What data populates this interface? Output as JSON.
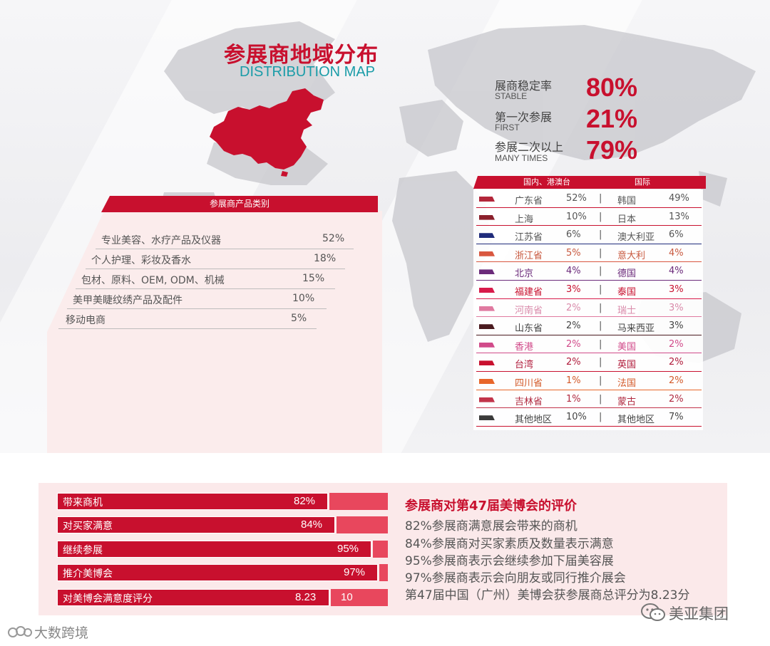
{
  "title": {
    "cn": "参展商地域分布",
    "en": "DISTRIBUTION MAP"
  },
  "stats": [
    {
      "label": "展商稳定率",
      "sub": "STABLE",
      "value": "80%"
    },
    {
      "label": "第一次参展",
      "sub": "FIRST",
      "value": "21%"
    },
    {
      "label": "参展二次以上",
      "sub": "MANY TIMES",
      "value": "79%"
    }
  ],
  "categories": {
    "header": "参展商产品类别",
    "items": [
      {
        "name": "专业美容、水疗产品及仪器",
        "pct": "52%"
      },
      {
        "name": "个人护理、彩妆及香水",
        "pct": "18%"
      },
      {
        "name": "包材、原料、OEM, ODM、机械",
        "pct": "15%"
      },
      {
        "name": "美甲美睫纹绣产品及配件",
        "pct": "10%"
      },
      {
        "name": "移动电商",
        "pct": "5%"
      }
    ]
  },
  "regions": {
    "header_domestic": "国内、港澳台",
    "header_intl": "国际",
    "separator": "|",
    "rows": [
      {
        "dom": "广东省",
        "dom_pct": "52%",
        "intl": "韩国",
        "intl_pct": "49%",
        "color": "#b3263a",
        "text": "#555555",
        "line": "#c8102e"
      },
      {
        "dom": "上海",
        "dom_pct": "10%",
        "intl": "日本",
        "intl_pct": "13%",
        "color": "#8a1f2b",
        "text": "#555555",
        "line": "#c8102e"
      },
      {
        "dom": "江苏省",
        "dom_pct": "6%",
        "intl": "澳大利亚",
        "intl_pct": "6%",
        "color": "#1f2b7a",
        "text": "#555555",
        "line": "#1f2b7a"
      },
      {
        "dom": "浙江省",
        "dom_pct": "5%",
        "intl": "意大利",
        "intl_pct": "4%",
        "color": "#d9573f",
        "text": "#c8593f",
        "line": "#d9573f"
      },
      {
        "dom": "北京",
        "dom_pct": "4%",
        "intl": "德国",
        "intl_pct": "4%",
        "color": "#6b2a7a",
        "text": "#6b2a7a",
        "line": "#6b2a7a"
      },
      {
        "dom": "福建省",
        "dom_pct": "3%",
        "intl": "泰国",
        "intl_pct": "3%",
        "color": "#d81b4a",
        "text": "#c8102e",
        "line": "#d81b4a"
      },
      {
        "dom": "河南省",
        "dom_pct": "2%",
        "intl": "瑞士",
        "intl_pct": "3%",
        "color": "#e07aa0",
        "text": "#d98aaa",
        "line": "#e07aa0"
      },
      {
        "dom": "山东省",
        "dom_pct": "2%",
        "intl": "马来西亚",
        "intl_pct": "3%",
        "color": "#4a1a1f",
        "text": "#444444",
        "line": "#4a1a1f"
      },
      {
        "dom": "香港",
        "dom_pct": "2%",
        "intl": "美国",
        "intl_pct": "2%",
        "color": "#d14b8a",
        "text": "#d14b8a",
        "line": "#d14b8a"
      },
      {
        "dom": "台湾",
        "dom_pct": "2%",
        "intl": "英国",
        "intl_pct": "2%",
        "color": "#c8102e",
        "text": "#b01a3a",
        "line": "#c8102e"
      },
      {
        "dom": "四川省",
        "dom_pct": "1%",
        "intl": "法国",
        "intl_pct": "2%",
        "color": "#e8662a",
        "text": "#d35a2a",
        "line": "#e8662a"
      },
      {
        "dom": "吉林省",
        "dom_pct": "1%",
        "intl": "蒙古",
        "intl_pct": "2%",
        "color": "#c2344a",
        "text": "#b02a40",
        "line": "#c2344a"
      },
      {
        "dom": "其他地区",
        "dom_pct": "10%",
        "intl": "其他地区",
        "intl_pct": "7%",
        "color": "#3a3a3a",
        "text": "#444444",
        "line": "#c8102e"
      }
    ]
  },
  "chart_data": {
    "type": "bar",
    "categories": [
      "带来商机",
      "对买家满意",
      "继续参展",
      "推介美博会",
      "对美博会满意度评分"
    ],
    "values": [
      82,
      84,
      95,
      97,
      8.23
    ],
    "value_labels": [
      "82%",
      "84%",
      "95%",
      "97%",
      "8.23"
    ],
    "max": [
      100,
      100,
      100,
      100,
      10
    ],
    "max_label": "10",
    "title": "参展商对第47届美博会的评价"
  },
  "evaluation_lines": [
    "82%参展商满意展会带来的商机",
    "84%参展商对买家素质及数量表示满意",
    "95%参展商表示会继续参加下届美容展",
    "97%参展商表示会向朋友或同行推介展会",
    "第47届中国（广州）美博会获参展商总评分为8.23分"
  ],
  "footer": {
    "left": "大数跨境",
    "right": "美亚集团"
  },
  "colors": {
    "accent": "#c8102e",
    "accent_light": "#e8475d",
    "teal": "#1a9ca8",
    "panel": "#fbecec"
  }
}
